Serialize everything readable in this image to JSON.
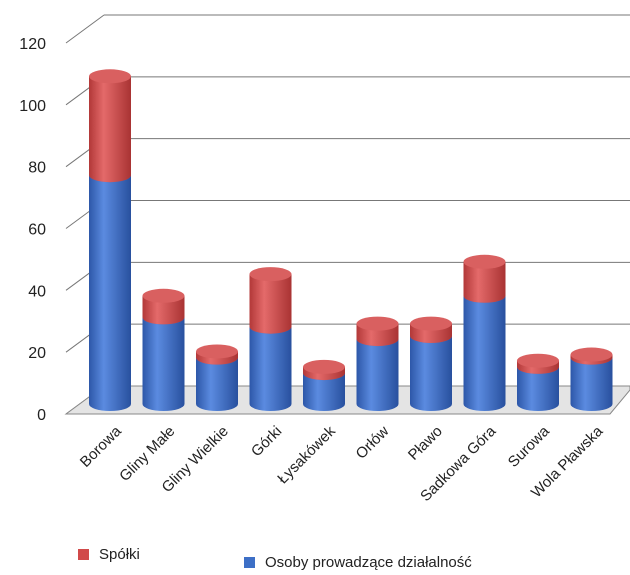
{
  "chart_data": {
    "type": "bar",
    "stacked": true,
    "style": "3d-cylinder",
    "categories": [
      "Borowa",
      "Gliny Małe",
      "Gliny Wielkie",
      "Górki",
      "Łysakówek",
      "Orłów",
      "Pławo",
      "Sadkowa Góra",
      "Surowa",
      "Wola Pławska"
    ],
    "series": [
      {
        "name": "Osoby prowadzące działalność",
        "color": "#3d6fc6",
        "values": [
          74,
          28,
          15,
          25,
          10,
          21,
          22,
          35,
          12,
          15
        ]
      },
      {
        "name": "Spółki",
        "color": "#d14a4a",
        "values": [
          32,
          7,
          2,
          17,
          2,
          5,
          4,
          11,
          2,
          1
        ]
      }
    ],
    "ylim": [
      0,
      120
    ],
    "yticks": [
      0,
      20,
      40,
      60,
      80,
      100,
      120
    ],
    "grid": true,
    "legend_position": "bottom"
  }
}
